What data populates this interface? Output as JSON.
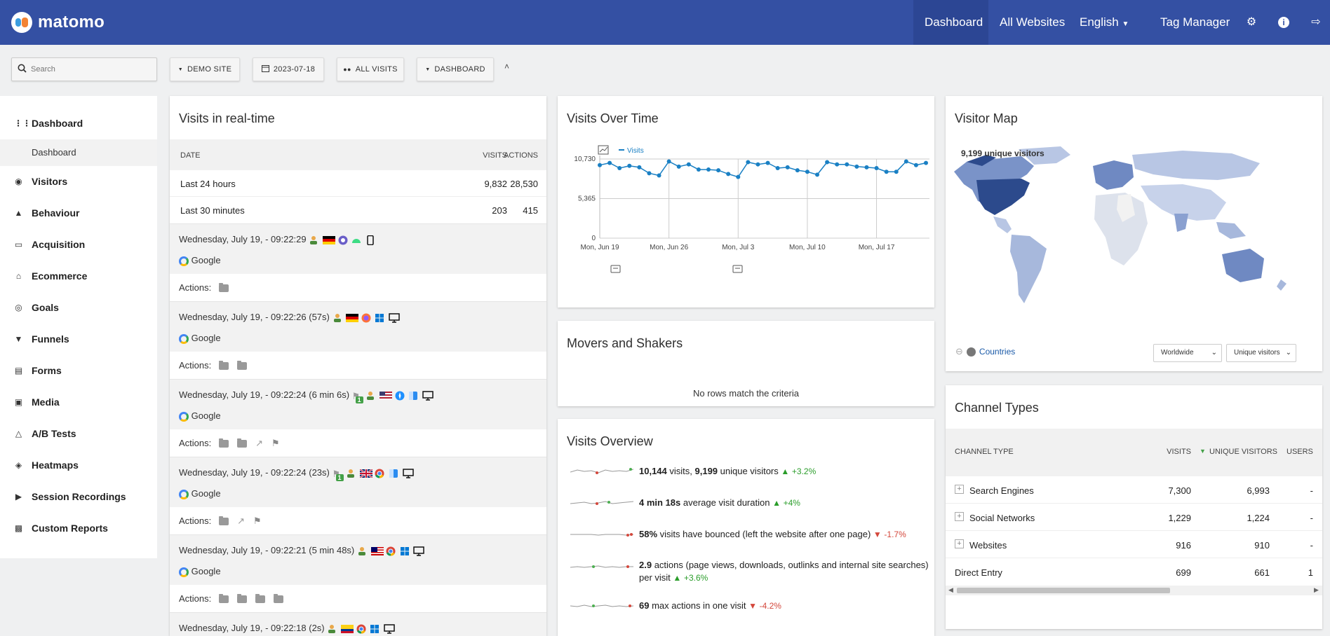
{
  "header": {
    "brand": "matomo",
    "nav": [
      {
        "label": "Dashboard"
      },
      {
        "label": "All Websites"
      },
      {
        "label": "English"
      },
      {
        "label": "Tag Manager"
      }
    ]
  },
  "toolbar": {
    "search_placeholder": "Search",
    "site": "DEMO SITE",
    "date": "2023-07-18",
    "segment": "ALL VISITS",
    "dashboard": "DASHBOARD"
  },
  "sidebar": {
    "items": [
      {
        "label": "Dashboard",
        "icon": "grid-icon"
      },
      {
        "label": "Visitors",
        "icon": "binoculars-icon"
      },
      {
        "label": "Behaviour",
        "icon": "bell-icon"
      },
      {
        "label": "Acquisition",
        "icon": "browser-icon"
      },
      {
        "label": "Ecommerce",
        "icon": "cart-icon"
      },
      {
        "label": "Goals",
        "icon": "target-icon"
      },
      {
        "label": "Funnels",
        "icon": "funnel-icon"
      },
      {
        "label": "Forms",
        "icon": "form-icon"
      },
      {
        "label": "Media",
        "icon": "media-icon"
      },
      {
        "label": "A/B Tests",
        "icon": "flask-icon"
      },
      {
        "label": "Heatmaps",
        "icon": "flame-icon"
      },
      {
        "label": "Session Recordings",
        "icon": "play-icon"
      },
      {
        "label": "Custom Reports",
        "icon": "reports-icon"
      }
    ],
    "sub_dashboard": "Dashboard"
  },
  "realtime": {
    "title": "Visits in real-time",
    "columns": [
      "DATE",
      "VISITS",
      "ACTIONS"
    ],
    "rows": [
      {
        "label": "Last 24 hours",
        "visits": "9,832",
        "actions": "28,530"
      },
      {
        "label": "Last 30 minutes",
        "visits": "203",
        "actions": "415"
      }
    ],
    "source": "Google",
    "actions_label": "Actions:",
    "visits": [
      {
        "time": "Wednesday, July 19, - 09:22:29",
        "badge": ""
      },
      {
        "time": "Wednesday, July 19, - 09:22:26 (57s)",
        "badge": ""
      },
      {
        "time": "Wednesday, July 19, - 09:22:24 (6 min 6s)",
        "badge": "1"
      },
      {
        "time": "Wednesday, July 19, - 09:22:24 (23s)",
        "badge": "1"
      },
      {
        "time": "Wednesday, July 19, - 09:22:21 (5 min 48s)",
        "badge": ""
      },
      {
        "time": "Wednesday, July 19, - 09:22:18 (2s)",
        "badge": ""
      }
    ]
  },
  "visits_over_time": {
    "title": "Visits Over Time",
    "legend": "Visits",
    "chart_data": {
      "type": "line",
      "series": [
        {
          "name": "Visits",
          "values": [
            9900,
            10200,
            9500,
            9800,
            9600,
            8800,
            8500,
            10400,
            9700,
            10000,
            9300,
            9300,
            9200,
            8700,
            8300,
            10300,
            10000,
            10200,
            9500,
            9600,
            9200,
            9000,
            8600,
            10300,
            10000,
            10000,
            9700,
            9600,
            9500,
            9000,
            9000,
            10400,
            9900,
            10200
          ]
        }
      ],
      "x_ticks": [
        "Mon, Jun 19",
        "Mon, Jun 26",
        "Mon, Jul 3",
        "Mon, Jul 10",
        "Mon, Jul 17"
      ],
      "y_ticks": [
        "10,730",
        "5,365",
        "0"
      ],
      "ylim": [
        0,
        10730
      ]
    }
  },
  "movers": {
    "title": "Movers and Shakers",
    "empty": "No rows match the criteria"
  },
  "overview": {
    "title": "Visits Overview",
    "rows": [
      {
        "strong1": "10,144",
        "text1": " visits, ",
        "strong2": "9,199",
        "text2": " unique visitors",
        "delta": "+3.2%",
        "dir": "up"
      },
      {
        "strong1": "4 min 18s",
        "text1": " average visit duration",
        "strong2": "",
        "text2": "",
        "delta": "+4%",
        "dir": "up"
      },
      {
        "strong1": "58%",
        "text1": " visits have bounced (left the website after one page)",
        "strong2": "",
        "text2": "",
        "delta": "-1.7%",
        "dir": "down"
      },
      {
        "strong1": "2.9",
        "text1": " actions (page views, downloads, outlinks and internal site searches) per visit",
        "strong2": "",
        "text2": "",
        "delta": "+3.6%",
        "dir": "up"
      },
      {
        "strong1": "69",
        "text1": " max actions in one visit",
        "strong2": "",
        "text2": "",
        "delta": "-4.2%",
        "dir": "down"
      }
    ]
  },
  "visitor_map": {
    "title": "Visitor Map",
    "summary": "9,199 unique visitors",
    "link": "Countries",
    "region": "Worldwide",
    "metric": "Unique visitors"
  },
  "channels": {
    "title": "Channel Types",
    "columns": [
      "CHANNEL TYPE",
      "VISITS",
      "UNIQUE VISITORS",
      "USERS"
    ],
    "rows": [
      {
        "name": "Search Engines",
        "visits": "7,300",
        "unique": "6,993",
        "users": "-",
        "expand": true
      },
      {
        "name": "Social Networks",
        "visits": "1,229",
        "unique": "1,224",
        "users": "-",
        "expand": true
      },
      {
        "name": "Websites",
        "visits": "916",
        "unique": "910",
        "users": "-",
        "expand": true
      },
      {
        "name": "Direct Entry",
        "visits": "699",
        "unique": "661",
        "users": "1",
        "expand": false
      }
    ]
  }
}
